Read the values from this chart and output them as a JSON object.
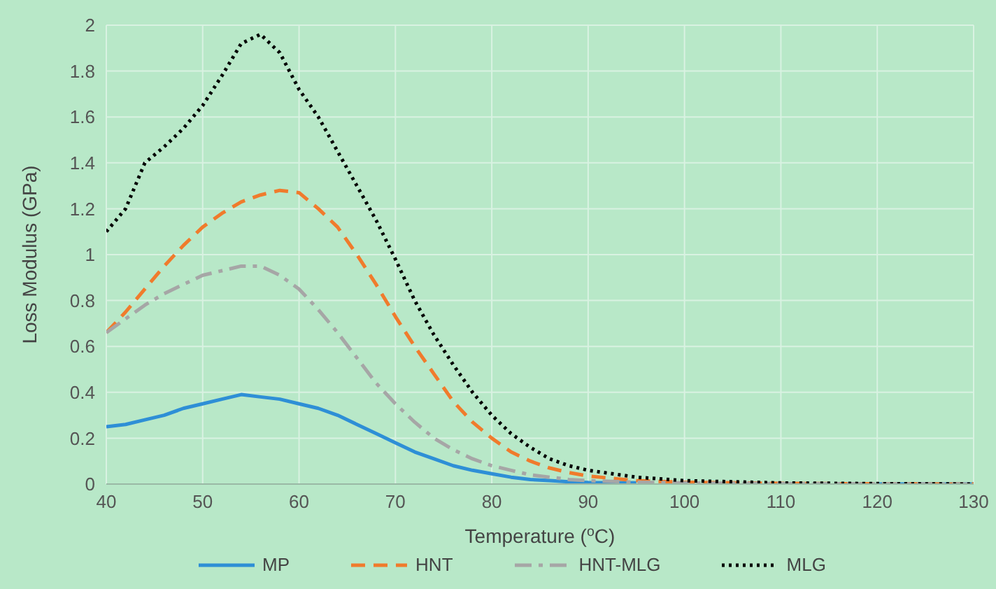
{
  "chart_data": {
    "type": "line",
    "xlabel": "Temperature ($^{o}$C)",
    "ylabel": "Loss Modulus (GPa)",
    "x": [
      40,
      42,
      44,
      46,
      48,
      50,
      52,
      54,
      56,
      58,
      60,
      62,
      64,
      66,
      68,
      70,
      72,
      74,
      76,
      78,
      80,
      82,
      84,
      86,
      88,
      90,
      95,
      100,
      110,
      120,
      130
    ],
    "series": [
      {
        "name": "MP",
        "color": "#2e8fd6",
        "line_style": "solid",
        "values": [
          0.25,
          0.26,
          0.28,
          0.3,
          0.33,
          0.35,
          0.37,
          0.39,
          0.38,
          0.37,
          0.35,
          0.33,
          0.3,
          0.26,
          0.22,
          0.18,
          0.14,
          0.11,
          0.08,
          0.06,
          0.045,
          0.03,
          0.02,
          0.015,
          0.01,
          0.007,
          0.005,
          null,
          null,
          0,
          0
        ]
      },
      {
        "name": "HNT",
        "color": "#f07b2c",
        "line_style": "dashed",
        "values": [
          0.66,
          0.75,
          0.85,
          0.95,
          1.04,
          1.12,
          1.18,
          1.23,
          1.26,
          1.28,
          1.27,
          1.2,
          1.12,
          1,
          0.87,
          0.73,
          0.6,
          0.48,
          0.36,
          0.27,
          0.2,
          0.14,
          0.1,
          0.07,
          0.05,
          0.035,
          0.015,
          0.008,
          0.003,
          0.001,
          0
        ]
      },
      {
        "name": "HNT-MLG",
        "color": "#a6a6a6",
        "line_style": "dashdot",
        "values": [
          0.66,
          0.72,
          0.78,
          0.83,
          0.87,
          0.91,
          0.93,
          0.95,
          0.95,
          0.91,
          0.85,
          0.76,
          0.66,
          0.55,
          0.44,
          0.35,
          0.27,
          0.2,
          0.15,
          0.11,
          0.08,
          0.06,
          0.04,
          0.03,
          0.02,
          0.015,
          0.008,
          0.005,
          0.002,
          0.001,
          0
        ]
      },
      {
        "name": "MLG",
        "color": "#000000",
        "line_style": "dotted",
        "values": [
          1.1,
          1.2,
          1.4,
          1.47,
          1.55,
          1.65,
          1.78,
          1.92,
          1.96,
          1.88,
          1.72,
          1.6,
          1.45,
          1.3,
          1.15,
          0.98,
          0.8,
          0.65,
          0.52,
          0.4,
          0.3,
          0.22,
          0.16,
          0.11,
          0.08,
          0.06,
          0.03,
          0.015,
          0.005,
          0.002,
          0
        ]
      }
    ],
    "xlim": [
      40,
      130
    ],
    "xticks": [
      40,
      50,
      60,
      70,
      80,
      90,
      100,
      110,
      120,
      130
    ],
    "ylim": [
      0,
      2
    ],
    "yticks": [
      0,
      0.2,
      0.4,
      0.6,
      0.8,
      1,
      1.2,
      1.4,
      1.6,
      1.8,
      2
    ],
    "grid": true,
    "legend": "bottom",
    "marker": "none"
  }
}
